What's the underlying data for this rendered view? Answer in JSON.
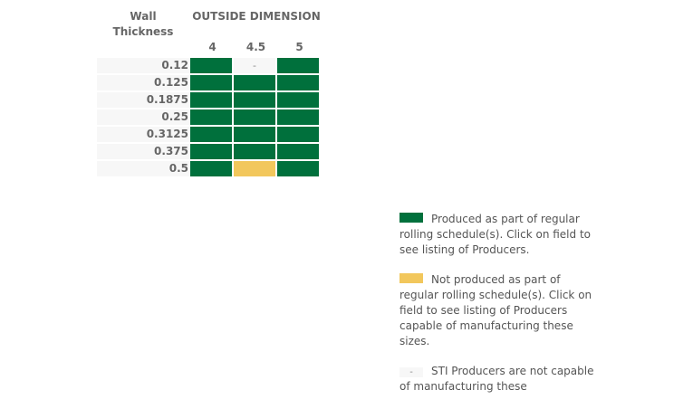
{
  "header": {
    "wall": "Wall Thickness",
    "od": "OUTSIDE DIMENSION"
  },
  "columns": [
    "4",
    "4.5",
    "5"
  ],
  "rows": [
    {
      "label": "0.12",
      "cells": [
        "G",
        "N",
        "G"
      ]
    },
    {
      "label": "0.125",
      "cells": [
        "G",
        "G",
        "G"
      ]
    },
    {
      "label": "0.1875",
      "cells": [
        "G",
        "G",
        "G"
      ]
    },
    {
      "label": "0.25",
      "cells": [
        "G",
        "G",
        "G"
      ]
    },
    {
      "label": "0.3125",
      "cells": [
        "G",
        "G",
        "G"
      ]
    },
    {
      "label": "0.375",
      "cells": [
        "G",
        "G",
        "G"
      ]
    },
    {
      "label": "0.5",
      "cells": [
        "G",
        "Y",
        "G"
      ]
    }
  ],
  "not_capable_mark": "-",
  "colors": {
    "produced": "#00703c",
    "not_produced": "#f2c75c",
    "not_capable": "#f7f7f7"
  },
  "legend": [
    {
      "type": "G",
      "text": "Produced as part of regular rolling schedule(s). Click on field to see listing of Producers."
    },
    {
      "type": "Y",
      "text": "Not produced as part of regular rolling schedule(s). Click on field to see listing of Producers capable of manufacturing these sizes."
    },
    {
      "type": "N",
      "mark": "-",
      "text": "STI Producers are not capable of manufacturing these"
    }
  ]
}
